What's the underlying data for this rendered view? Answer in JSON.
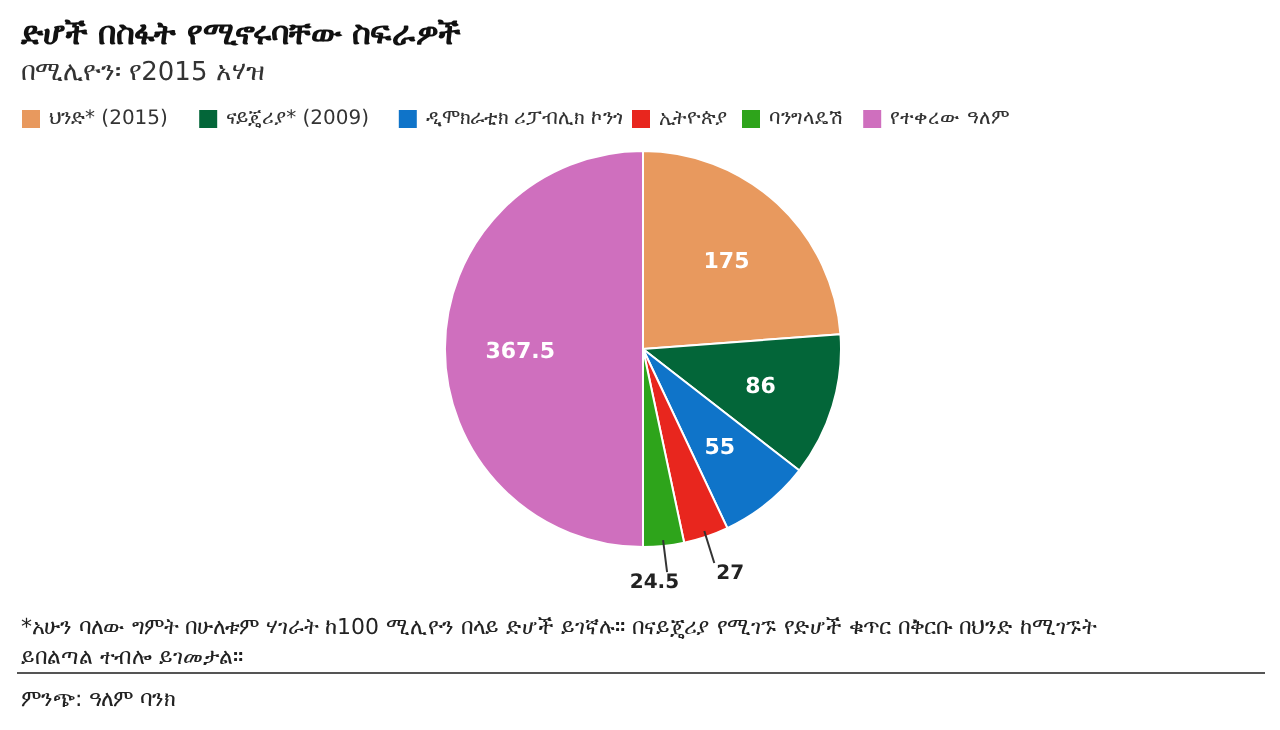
{
  "chart_data": {
    "type": "pie",
    "title": "ድሆች በስፋት የሚኖሩባቸው ስፍራዎች",
    "subtitle": "በሚሊዮን፡ የ2015 አሃዝ",
    "categories": [
      "ህንድ* (2015)",
      "ናይጄሪያ* (2009)",
      "ዲሞክራቲክ ሪፓብሊክ ኮንጎ",
      "ኢትዮጵያ",
      "ባንግላዴሽ",
      "የተቀረው ዓለም"
    ],
    "values": [
      175,
      86,
      55,
      27,
      24.5,
      367.5
    ],
    "colors": [
      "#e8995e",
      "#036639",
      "#0f74c9",
      "#e8261e",
      "#2ea41b",
      "#cf6fbe"
    ],
    "data_labels": true,
    "legend": "top",
    "annotations": [
      "*አሁን ባለው ግምት በሁለቱም ሃገራት ከ100 ሚሊዮን በላይ ድሆች ይገኛሉ። በናይጄሪያ የሚገኙ የድሆች ቁጥር በቅርቡ በህንድ ከሚገኙት ይበልጣል ተብሎ ይገመታል።",
      "ምንጭ: ዓለም ባንክ"
    ]
  }
}
